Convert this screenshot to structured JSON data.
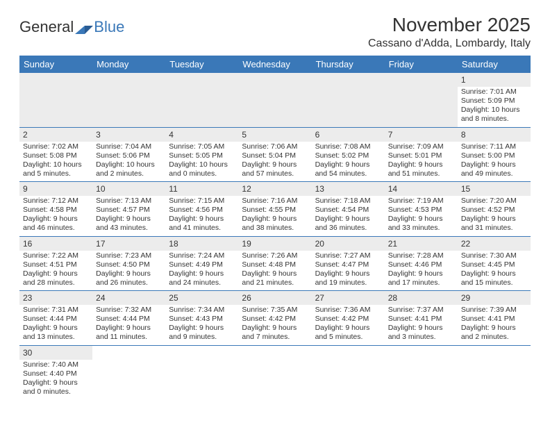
{
  "logo": {
    "text1": "General",
    "text2": "Blue"
  },
  "title": "November 2025",
  "location": "Cassano d'Adda, Lombardy, Italy",
  "colors": {
    "header_bg": "#3a78b8",
    "header_text": "#ffffff",
    "empty_cell_bg": "#ececec",
    "row_border": "#3a78b8",
    "body_text": "#333333",
    "background": "#ffffff"
  },
  "weekdays": [
    "Sunday",
    "Monday",
    "Tuesday",
    "Wednesday",
    "Thursday",
    "Friday",
    "Saturday"
  ],
  "rows": [
    [
      null,
      null,
      null,
      null,
      null,
      null,
      {
        "d": "1",
        "sr": "Sunrise: 7:01 AM",
        "ss": "Sunset: 5:09 PM",
        "dl1": "Daylight: 10 hours",
        "dl2": "and 8 minutes."
      }
    ],
    [
      {
        "d": "2",
        "sr": "Sunrise: 7:02 AM",
        "ss": "Sunset: 5:08 PM",
        "dl1": "Daylight: 10 hours",
        "dl2": "and 5 minutes."
      },
      {
        "d": "3",
        "sr": "Sunrise: 7:04 AM",
        "ss": "Sunset: 5:06 PM",
        "dl1": "Daylight: 10 hours",
        "dl2": "and 2 minutes."
      },
      {
        "d": "4",
        "sr": "Sunrise: 7:05 AM",
        "ss": "Sunset: 5:05 PM",
        "dl1": "Daylight: 10 hours",
        "dl2": "and 0 minutes."
      },
      {
        "d": "5",
        "sr": "Sunrise: 7:06 AM",
        "ss": "Sunset: 5:04 PM",
        "dl1": "Daylight: 9 hours",
        "dl2": "and 57 minutes."
      },
      {
        "d": "6",
        "sr": "Sunrise: 7:08 AM",
        "ss": "Sunset: 5:02 PM",
        "dl1": "Daylight: 9 hours",
        "dl2": "and 54 minutes."
      },
      {
        "d": "7",
        "sr": "Sunrise: 7:09 AM",
        "ss": "Sunset: 5:01 PM",
        "dl1": "Daylight: 9 hours",
        "dl2": "and 51 minutes."
      },
      {
        "d": "8",
        "sr": "Sunrise: 7:11 AM",
        "ss": "Sunset: 5:00 PM",
        "dl1": "Daylight: 9 hours",
        "dl2": "and 49 minutes."
      }
    ],
    [
      {
        "d": "9",
        "sr": "Sunrise: 7:12 AM",
        "ss": "Sunset: 4:58 PM",
        "dl1": "Daylight: 9 hours",
        "dl2": "and 46 minutes."
      },
      {
        "d": "10",
        "sr": "Sunrise: 7:13 AM",
        "ss": "Sunset: 4:57 PM",
        "dl1": "Daylight: 9 hours",
        "dl2": "and 43 minutes."
      },
      {
        "d": "11",
        "sr": "Sunrise: 7:15 AM",
        "ss": "Sunset: 4:56 PM",
        "dl1": "Daylight: 9 hours",
        "dl2": "and 41 minutes."
      },
      {
        "d": "12",
        "sr": "Sunrise: 7:16 AM",
        "ss": "Sunset: 4:55 PM",
        "dl1": "Daylight: 9 hours",
        "dl2": "and 38 minutes."
      },
      {
        "d": "13",
        "sr": "Sunrise: 7:18 AM",
        "ss": "Sunset: 4:54 PM",
        "dl1": "Daylight: 9 hours",
        "dl2": "and 36 minutes."
      },
      {
        "d": "14",
        "sr": "Sunrise: 7:19 AM",
        "ss": "Sunset: 4:53 PM",
        "dl1": "Daylight: 9 hours",
        "dl2": "and 33 minutes."
      },
      {
        "d": "15",
        "sr": "Sunrise: 7:20 AM",
        "ss": "Sunset: 4:52 PM",
        "dl1": "Daylight: 9 hours",
        "dl2": "and 31 minutes."
      }
    ],
    [
      {
        "d": "16",
        "sr": "Sunrise: 7:22 AM",
        "ss": "Sunset: 4:51 PM",
        "dl1": "Daylight: 9 hours",
        "dl2": "and 28 minutes."
      },
      {
        "d": "17",
        "sr": "Sunrise: 7:23 AM",
        "ss": "Sunset: 4:50 PM",
        "dl1": "Daylight: 9 hours",
        "dl2": "and 26 minutes."
      },
      {
        "d": "18",
        "sr": "Sunrise: 7:24 AM",
        "ss": "Sunset: 4:49 PM",
        "dl1": "Daylight: 9 hours",
        "dl2": "and 24 minutes."
      },
      {
        "d": "19",
        "sr": "Sunrise: 7:26 AM",
        "ss": "Sunset: 4:48 PM",
        "dl1": "Daylight: 9 hours",
        "dl2": "and 21 minutes."
      },
      {
        "d": "20",
        "sr": "Sunrise: 7:27 AM",
        "ss": "Sunset: 4:47 PM",
        "dl1": "Daylight: 9 hours",
        "dl2": "and 19 minutes."
      },
      {
        "d": "21",
        "sr": "Sunrise: 7:28 AM",
        "ss": "Sunset: 4:46 PM",
        "dl1": "Daylight: 9 hours",
        "dl2": "and 17 minutes."
      },
      {
        "d": "22",
        "sr": "Sunrise: 7:30 AM",
        "ss": "Sunset: 4:45 PM",
        "dl1": "Daylight: 9 hours",
        "dl2": "and 15 minutes."
      }
    ],
    [
      {
        "d": "23",
        "sr": "Sunrise: 7:31 AM",
        "ss": "Sunset: 4:44 PM",
        "dl1": "Daylight: 9 hours",
        "dl2": "and 13 minutes."
      },
      {
        "d": "24",
        "sr": "Sunrise: 7:32 AM",
        "ss": "Sunset: 4:44 PM",
        "dl1": "Daylight: 9 hours",
        "dl2": "and 11 minutes."
      },
      {
        "d": "25",
        "sr": "Sunrise: 7:34 AM",
        "ss": "Sunset: 4:43 PM",
        "dl1": "Daylight: 9 hours",
        "dl2": "and 9 minutes."
      },
      {
        "d": "26",
        "sr": "Sunrise: 7:35 AM",
        "ss": "Sunset: 4:42 PM",
        "dl1": "Daylight: 9 hours",
        "dl2": "and 7 minutes."
      },
      {
        "d": "27",
        "sr": "Sunrise: 7:36 AM",
        "ss": "Sunset: 4:42 PM",
        "dl1": "Daylight: 9 hours",
        "dl2": "and 5 minutes."
      },
      {
        "d": "28",
        "sr": "Sunrise: 7:37 AM",
        "ss": "Sunset: 4:41 PM",
        "dl1": "Daylight: 9 hours",
        "dl2": "and 3 minutes."
      },
      {
        "d": "29",
        "sr": "Sunrise: 7:39 AM",
        "ss": "Sunset: 4:41 PM",
        "dl1": "Daylight: 9 hours",
        "dl2": "and 2 minutes."
      }
    ],
    [
      {
        "d": "30",
        "sr": "Sunrise: 7:40 AM",
        "ss": "Sunset: 4:40 PM",
        "dl1": "Daylight: 9 hours",
        "dl2": "and 0 minutes."
      },
      null,
      null,
      null,
      null,
      null,
      null
    ]
  ]
}
